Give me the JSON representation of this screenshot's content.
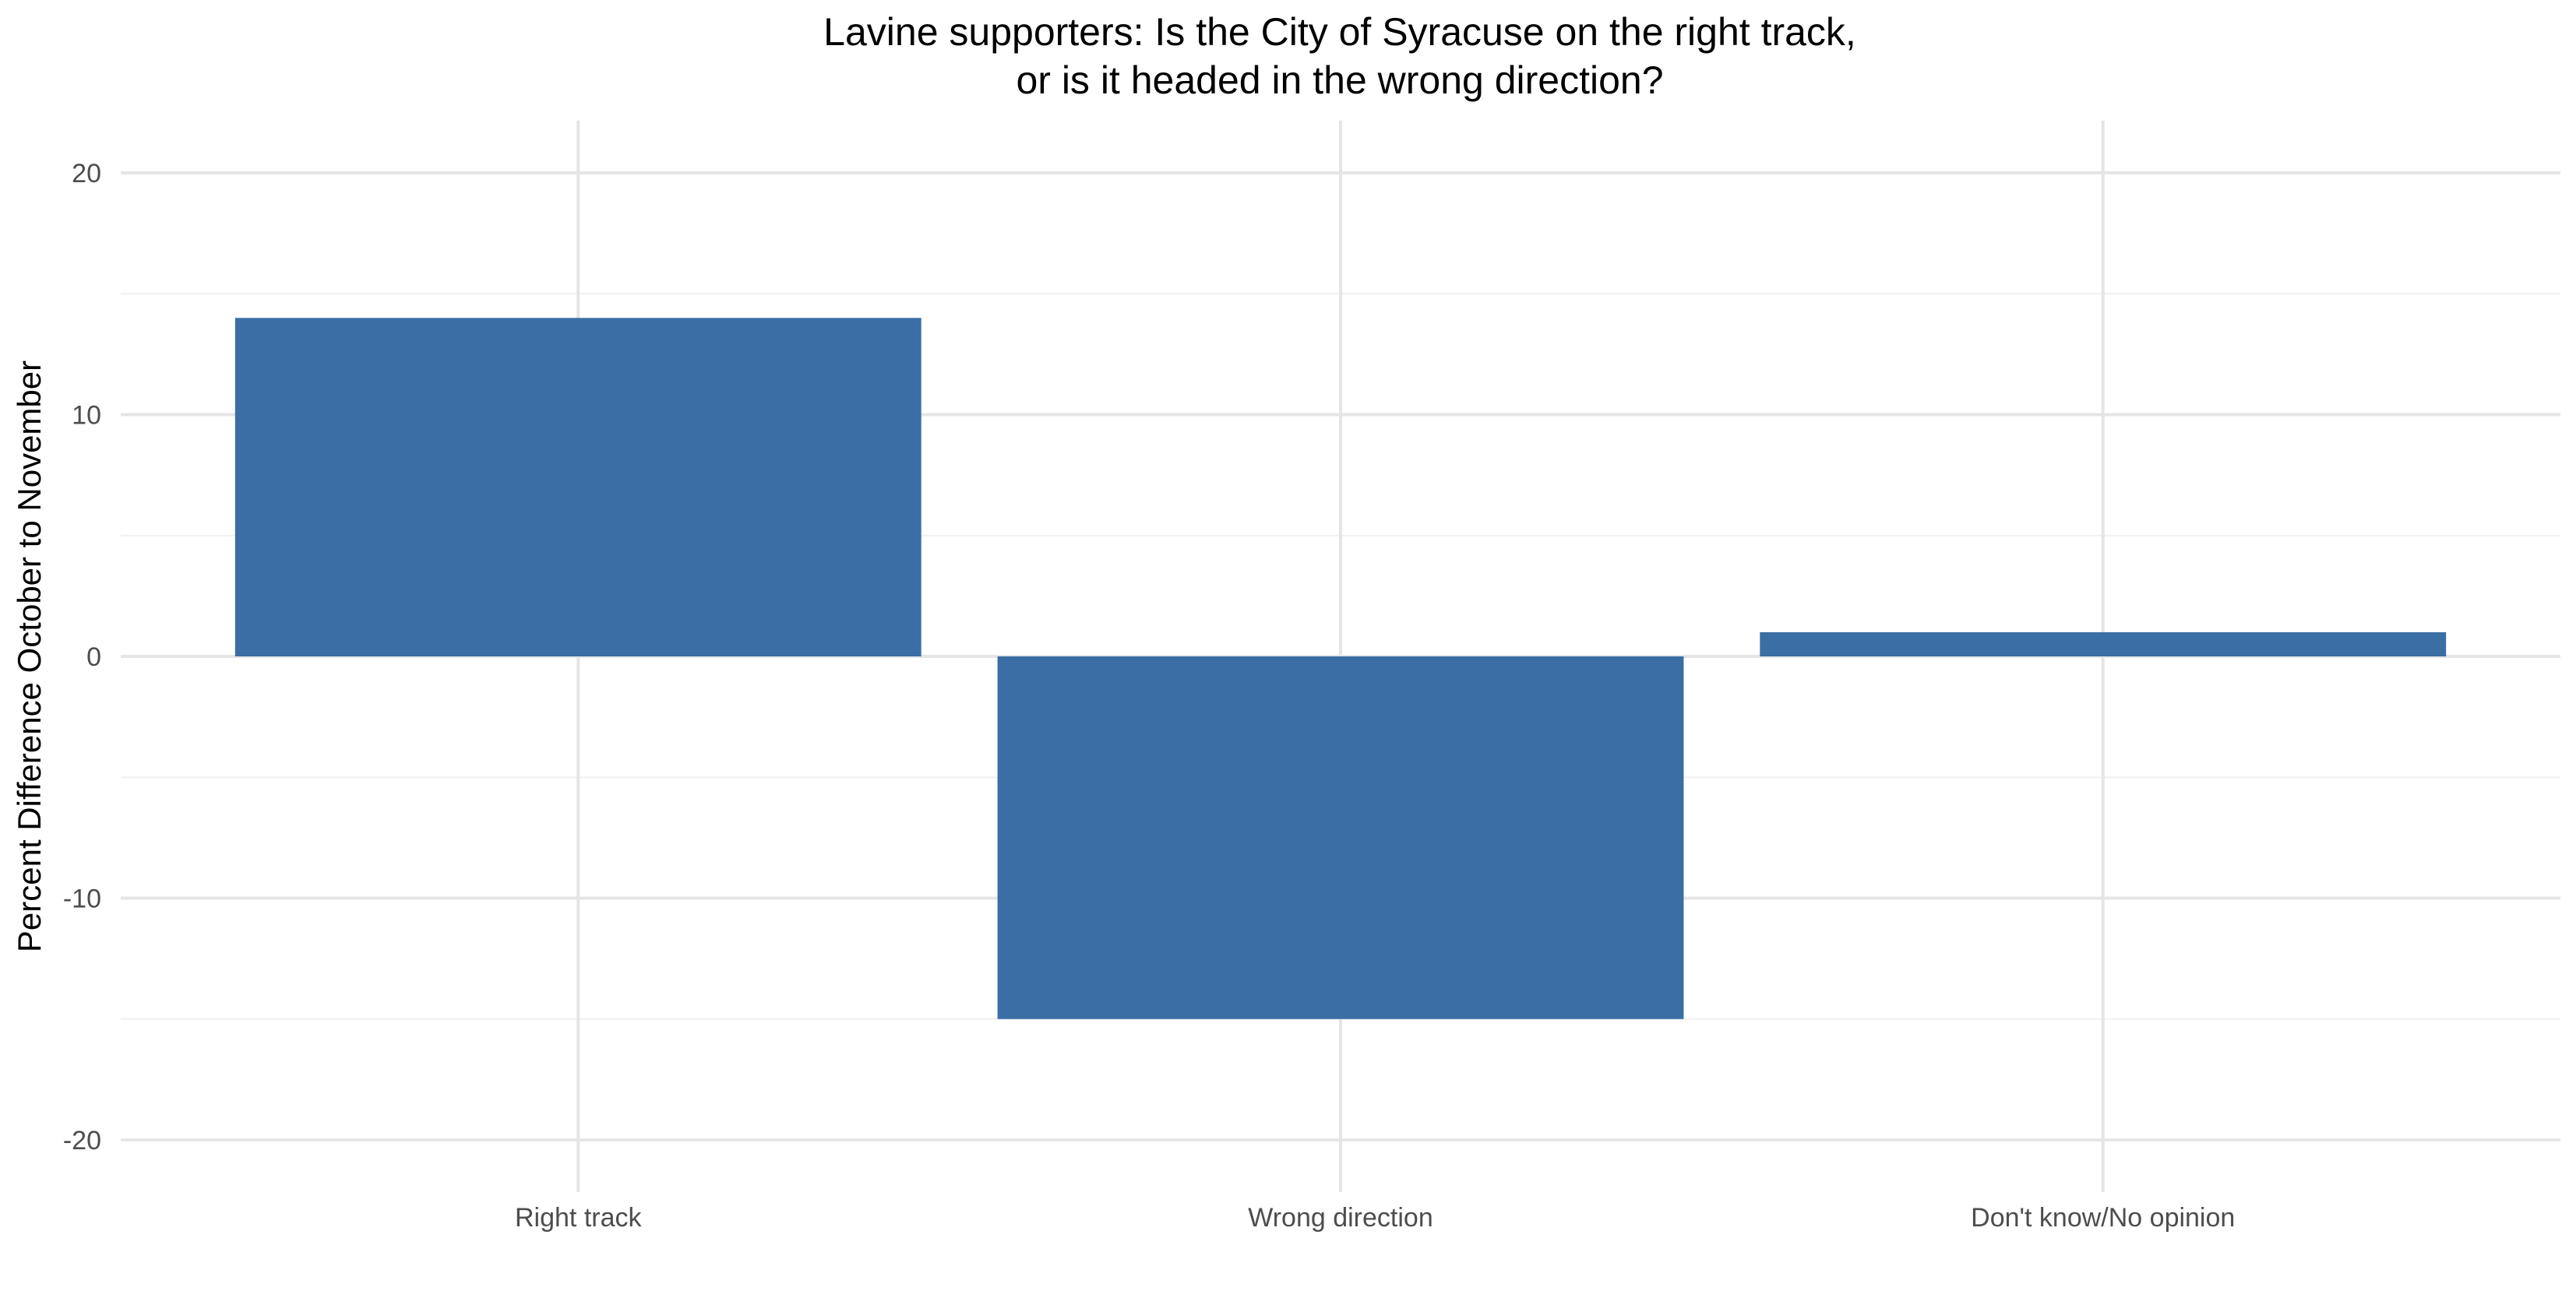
{
  "chart_data": {
    "type": "bar",
    "title": [
      "Lavine supporters: Is the City of Syracuse on the right track,",
      "or is it headed in the wrong direction?"
    ],
    "xlabel": "",
    "ylabel": "Percent Difference October to November",
    "categories": [
      "Right track",
      "Wrong direction",
      "Don't know/No opinion"
    ],
    "values": [
      14,
      -15,
      1
    ],
    "ylim": [
      -22,
      22
    ],
    "yticks": [
      -20,
      -10,
      0,
      10,
      20
    ],
    "ytick_labels": [
      "-20",
      "-10",
      "0",
      "10",
      "20"
    ],
    "grid": true,
    "legend": "none",
    "colors": {
      "bar": "#3A6EA5",
      "grid_major": "#E5E5E5",
      "grid_minor": "#F0F0F0",
      "text": "#4D4D4D",
      "title": "#000000"
    }
  }
}
